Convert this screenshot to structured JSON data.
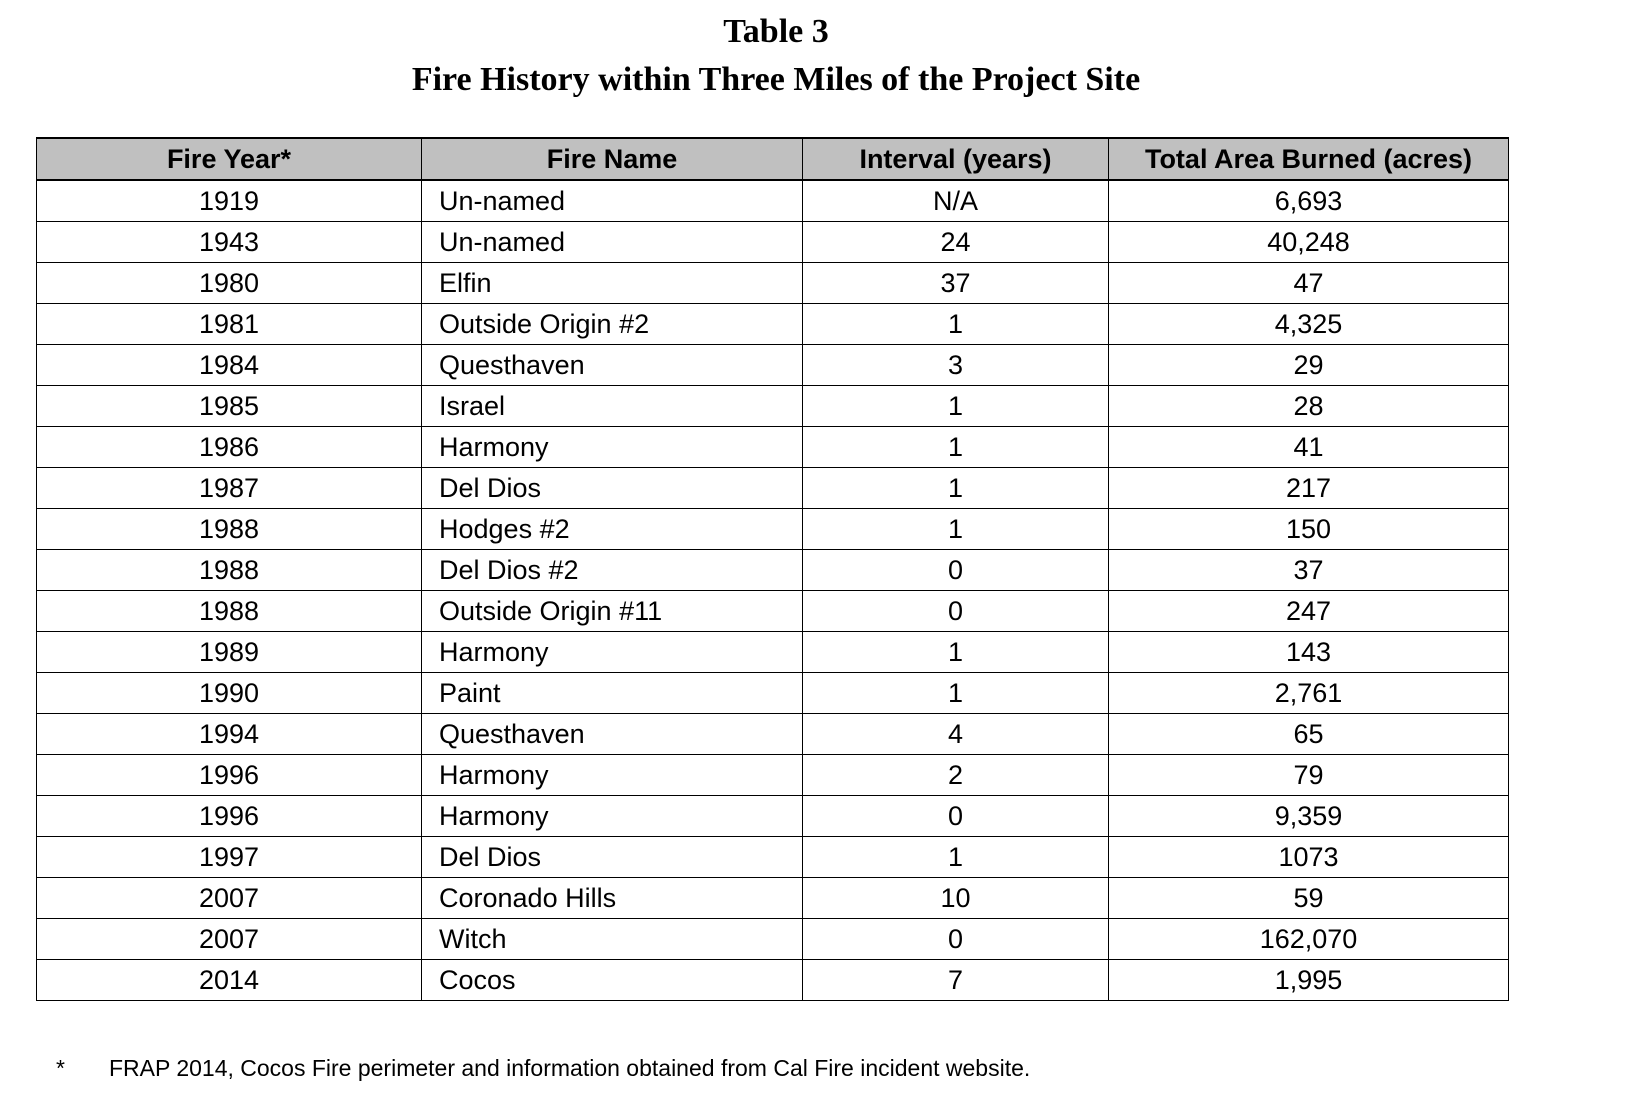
{
  "title": {
    "line1": "Table 3",
    "line2": "Fire History within Three Miles of the Project Site"
  },
  "table": {
    "headers": [
      "Fire Year*",
      "Fire Name",
      "Interval (years)",
      "Total Area Burned (acres)"
    ],
    "rows": [
      {
        "year": "1919",
        "name": "Un-named",
        "interval": "N/A",
        "area": "6,693"
      },
      {
        "year": "1943",
        "name": "Un-named",
        "interval": "24",
        "area": "40,248"
      },
      {
        "year": "1980",
        "name": "Elfin",
        "interval": "37",
        "area": "47"
      },
      {
        "year": "1981",
        "name": "Outside Origin #2",
        "interval": "1",
        "area": "4,325"
      },
      {
        "year": "1984",
        "name": "Questhaven",
        "interval": "3",
        "area": "29"
      },
      {
        "year": "1985",
        "name": "Israel",
        "interval": "1",
        "area": "28"
      },
      {
        "year": "1986",
        "name": "Harmony",
        "interval": "1",
        "area": "41"
      },
      {
        "year": "1987",
        "name": "Del Dios",
        "interval": "1",
        "area": "217"
      },
      {
        "year": "1988",
        "name": "Hodges #2",
        "interval": "1",
        "area": "150"
      },
      {
        "year": "1988",
        "name": "Del Dios #2",
        "interval": "0",
        "area": "37"
      },
      {
        "year": "1988",
        "name": "Outside Origin #11",
        "interval": "0",
        "area": "247"
      },
      {
        "year": "1989",
        "name": "Harmony",
        "interval": "1",
        "area": "143"
      },
      {
        "year": "1990",
        "name": "Paint",
        "interval": "1",
        "area": "2,761"
      },
      {
        "year": "1994",
        "name": "Questhaven",
        "interval": "4",
        "area": "65"
      },
      {
        "year": "1996",
        "name": "Harmony",
        "interval": "2",
        "area": "79"
      },
      {
        "year": "1996",
        "name": "Harmony",
        "interval": "0",
        "area": "9,359"
      },
      {
        "year": "1997",
        "name": "Del Dios",
        "interval": "1",
        "area": "1073"
      },
      {
        "year": "2007",
        "name": "Coronado Hills",
        "interval": "10",
        "area": "59"
      },
      {
        "year": "2007",
        "name": "Witch",
        "interval": "0",
        "area": "162,070"
      },
      {
        "year": "2014",
        "name": "Cocos",
        "interval": "7",
        "area": "1,995"
      }
    ]
  },
  "footnote": {
    "mark": "*",
    "text": "FRAP 2014, Cocos Fire perimeter and information obtained from Cal Fire incident website."
  },
  "colors": {
    "header_background": "#c0c0c0",
    "border": "#000000",
    "text": "#000000"
  }
}
